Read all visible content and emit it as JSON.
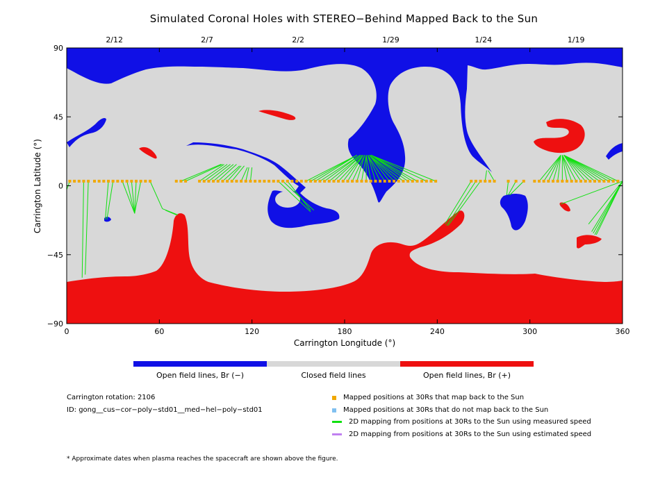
{
  "title": "Simulated Coronal Holes with STEREO−Behind Mapped Back to the Sun",
  "colors": {
    "open_negative": "#1010e6",
    "closed": "#d8d8d8",
    "open_positive": "#ee1010",
    "mapped": "#f0a800",
    "not_mapped": "#80c0f0",
    "measured": "#10e010",
    "estimated": "#c080f0"
  },
  "chart_data": {
    "type": "map",
    "xlabel": "Carrington Longitude (°)",
    "ylabel": "Carrington Latitude (°)",
    "xlim": [
      0,
      360
    ],
    "ylim": [
      -90,
      90
    ],
    "x_ticks": [
      "0",
      "60",
      "120",
      "180",
      "240",
      "300",
      "360"
    ],
    "y_ticks": [
      "90",
      "45",
      "0",
      "−45",
      "−90"
    ],
    "top_date_ticks": [
      {
        "label": "2/12",
        "lon": 30
      },
      {
        "label": "2/7",
        "lon": 90
      },
      {
        "label": "2/2",
        "lon": 149
      },
      {
        "label": "1/29",
        "lon": 209
      },
      {
        "label": "1/24",
        "lon": 269
      },
      {
        "label": "1/19",
        "lon": 329
      }
    ],
    "mapped_points": [
      [
        2,
        3
      ],
      [
        5,
        3
      ],
      [
        8,
        3
      ],
      [
        11,
        3
      ],
      [
        14,
        3
      ],
      [
        18,
        3
      ],
      [
        21,
        3
      ],
      [
        24,
        3
      ],
      [
        27,
        3
      ],
      [
        30,
        3
      ],
      [
        33,
        3
      ],
      [
        36,
        3
      ],
      [
        39,
        3
      ],
      [
        42,
        3
      ],
      [
        45,
        3
      ],
      [
        48,
        3
      ],
      [
        51,
        3
      ],
      [
        54,
        3
      ],
      [
        71,
        3
      ],
      [
        74,
        3
      ],
      [
        77,
        3
      ],
      [
        86,
        3
      ],
      [
        89,
        3
      ],
      [
        92,
        3
      ],
      [
        95,
        3
      ],
      [
        98,
        3
      ],
      [
        101,
        3
      ],
      [
        104,
        3
      ],
      [
        107,
        3
      ],
      [
        110,
        3
      ],
      [
        113,
        3
      ],
      [
        116,
        3
      ],
      [
        119,
        3
      ],
      [
        122,
        3
      ],
      [
        125,
        3
      ],
      [
        128,
        3
      ],
      [
        131,
        3
      ],
      [
        134,
        3
      ],
      [
        137,
        3
      ],
      [
        140,
        3
      ],
      [
        143,
        3
      ],
      [
        146,
        3
      ],
      [
        149,
        3
      ],
      [
        152,
        3
      ],
      [
        155,
        3
      ],
      [
        158,
        3
      ],
      [
        161,
        3
      ],
      [
        164,
        3
      ],
      [
        167,
        3
      ],
      [
        170,
        3
      ],
      [
        173,
        3
      ],
      [
        176,
        3
      ],
      [
        179,
        3
      ],
      [
        182,
        3
      ],
      [
        185,
        3
      ],
      [
        188,
        3
      ],
      [
        191,
        3
      ],
      [
        194,
        3
      ],
      [
        197,
        3
      ],
      [
        200,
        3
      ],
      [
        203,
        3
      ],
      [
        206,
        3
      ],
      [
        209,
        3
      ],
      [
        212,
        3
      ],
      [
        215,
        3
      ],
      [
        218,
        3
      ],
      [
        221,
        3
      ],
      [
        224,
        3
      ],
      [
        227,
        3
      ],
      [
        230,
        3
      ],
      [
        233,
        3
      ],
      [
        236,
        3
      ],
      [
        239,
        3
      ],
      [
        262,
        3
      ],
      [
        265,
        3
      ],
      [
        268,
        3
      ],
      [
        271,
        3
      ],
      [
        274,
        3
      ],
      [
        277,
        3
      ],
      [
        286,
        3
      ],
      [
        291,
        3
      ],
      [
        296,
        3
      ],
      [
        303,
        3
      ],
      [
        306,
        3
      ],
      [
        309,
        3
      ],
      [
        312,
        3
      ],
      [
        315,
        3
      ],
      [
        318,
        3
      ],
      [
        321,
        3
      ],
      [
        324,
        3
      ],
      [
        327,
        3
      ],
      [
        330,
        3
      ],
      [
        333,
        3
      ],
      [
        336,
        3
      ],
      [
        339,
        3
      ],
      [
        342,
        3
      ],
      [
        345,
        3
      ],
      [
        348,
        3
      ],
      [
        351,
        3
      ],
      [
        354,
        3
      ],
      [
        357,
        3
      ]
    ],
    "footpoint_links_measured": [
      [
        [
          2,
          3
        ],
        [
          -2,
          -8
        ]
      ],
      [
        [
          11,
          3
        ],
        [
          10,
          -60
        ]
      ],
      [
        [
          14,
          3
        ],
        [
          12,
          -58
        ]
      ],
      [
        [
          27,
          3
        ],
        [
          25,
          -22
        ]
      ],
      [
        [
          30,
          3
        ],
        [
          26,
          -22
        ]
      ],
      [
        [
          36,
          3
        ],
        [
          44,
          -18
        ]
      ],
      [
        [
          39,
          3
        ],
        [
          44,
          -18
        ]
      ],
      [
        [
          42,
          3
        ],
        [
          44,
          -18
        ]
      ],
      [
        [
          45,
          3
        ],
        [
          44,
          -18
        ]
      ],
      [
        [
          48,
          3
        ],
        [
          44,
          -18
        ]
      ],
      [
        [
          54,
          3
        ],
        [
          62,
          -15
        ]
      ],
      [
        [
          74,
          3
        ],
        [
          100,
          14
        ]
      ],
      [
        [
          77,
          3
        ],
        [
          101,
          14
        ]
      ],
      [
        [
          86,
          3
        ],
        [
          102,
          14
        ]
      ],
      [
        [
          89,
          3
        ],
        [
          104,
          14
        ]
      ],
      [
        [
          92,
          3
        ],
        [
          106,
          14
        ]
      ],
      [
        [
          95,
          3
        ],
        [
          108,
          14
        ]
      ],
      [
        [
          98,
          3
        ],
        [
          110,
          14
        ]
      ],
      [
        [
          101,
          3
        ],
        [
          112,
          13
        ]
      ],
      [
        [
          104,
          3
        ],
        [
          113,
          13
        ]
      ],
      [
        [
          107,
          3
        ],
        [
          115,
          13
        ]
      ],
      [
        [
          113,
          3
        ],
        [
          117,
          12
        ]
      ],
      [
        [
          116,
          3
        ],
        [
          118,
          12
        ]
      ],
      [
        [
          119,
          3
        ],
        [
          120,
          12
        ]
      ],
      [
        [
          62,
          -15
        ],
        [
          72,
          -19
        ]
      ],
      [
        [
          64,
          -16
        ],
        [
          71,
          -19
        ]
      ],
      [
        [
          137,
          3
        ],
        [
          158,
          -17
        ]
      ],
      [
        [
          140,
          3
        ],
        [
          160,
          -16
        ]
      ],
      [
        [
          143,
          3
        ],
        [
          158,
          -16
        ]
      ],
      [
        [
          155,
          3
        ],
        [
          188,
          20
        ]
      ],
      [
        [
          158,
          3
        ],
        [
          188,
          20
        ]
      ],
      [
        [
          161,
          3
        ],
        [
          188,
          20
        ]
      ],
      [
        [
          164,
          3
        ],
        [
          190,
          20
        ]
      ],
      [
        [
          167,
          3
        ],
        [
          190,
          20
        ]
      ],
      [
        [
          170,
          3
        ],
        [
          191,
          20
        ]
      ],
      [
        [
          173,
          3
        ],
        [
          191,
          20
        ]
      ],
      [
        [
          176,
          3
        ],
        [
          192,
          20
        ]
      ],
      [
        [
          179,
          3
        ],
        [
          192,
          20
        ]
      ],
      [
        [
          182,
          3
        ],
        [
          192,
          20
        ]
      ],
      [
        [
          185,
          3
        ],
        [
          193,
          20
        ]
      ],
      [
        [
          188,
          3
        ],
        [
          193,
          20
        ]
      ],
      [
        [
          191,
          3
        ],
        [
          194,
          20
        ]
      ],
      [
        [
          194,
          3
        ],
        [
          194,
          20
        ]
      ],
      [
        [
          197,
          3
        ],
        [
          194,
          20
        ]
      ],
      [
        [
          200,
          3
        ],
        [
          195,
          20
        ]
      ],
      [
        [
          203,
          3
        ],
        [
          195,
          20
        ]
      ],
      [
        [
          206,
          3
        ],
        [
          195,
          20
        ]
      ],
      [
        [
          209,
          3
        ],
        [
          196,
          20
        ]
      ],
      [
        [
          212,
          3
        ],
        [
          196,
          20
        ]
      ],
      [
        [
          215,
          3
        ],
        [
          196,
          20
        ]
      ],
      [
        [
          218,
          3
        ],
        [
          196,
          20
        ]
      ],
      [
        [
          221,
          3
        ],
        [
          197,
          20
        ]
      ],
      [
        [
          224,
          3
        ],
        [
          197,
          20
        ]
      ],
      [
        [
          227,
          3
        ],
        [
          197,
          20
        ]
      ],
      [
        [
          233,
          3
        ],
        [
          197,
          20
        ]
      ],
      [
        [
          239,
          3
        ],
        [
          197,
          20
        ]
      ],
      [
        [
          262,
          3
        ],
        [
          245,
          -25
        ]
      ],
      [
        [
          265,
          3
        ],
        [
          246,
          -26
        ]
      ],
      [
        [
          268,
          3
        ],
        [
          247,
          -26
        ]
      ],
      [
        [
          271,
          3
        ],
        [
          272,
          10
        ]
      ],
      [
        [
          277,
          3
        ],
        [
          273,
          10
        ]
      ],
      [
        [
          286,
          3
        ],
        [
          285,
          -6
        ]
      ],
      [
        [
          291,
          3
        ],
        [
          286,
          -6
        ]
      ],
      [
        [
          296,
          3
        ],
        [
          287,
          -6
        ]
      ],
      [
        [
          306,
          3
        ],
        [
          320,
          20
        ]
      ],
      [
        [
          309,
          3
        ],
        [
          320,
          20
        ]
      ],
      [
        [
          312,
          3
        ],
        [
          320,
          20
        ]
      ],
      [
        [
          315,
          3
        ],
        [
          320,
          20
        ]
      ],
      [
        [
          318,
          3
        ],
        [
          320,
          20
        ]
      ],
      [
        [
          321,
          3
        ],
        [
          321,
          20
        ]
      ],
      [
        [
          324,
          3
        ],
        [
          321,
          20
        ]
      ],
      [
        [
          327,
          3
        ],
        [
          321,
          20
        ]
      ],
      [
        [
          330,
          3
        ],
        [
          321,
          20
        ]
      ],
      [
        [
          333,
          3
        ],
        [
          322,
          20
        ]
      ],
      [
        [
          336,
          3
        ],
        [
          322,
          20
        ]
      ],
      [
        [
          339,
          3
        ],
        [
          322,
          20
        ]
      ],
      [
        [
          342,
          3
        ],
        [
          322,
          20
        ]
      ],
      [
        [
          345,
          3
        ],
        [
          322,
          20
        ]
      ],
      [
        [
          348,
          3
        ],
        [
          322,
          20
        ]
      ],
      [
        [
          351,
          3
        ],
        [
          322,
          20
        ]
      ],
      [
        [
          354,
          3
        ],
        [
          322,
          20
        ]
      ],
      [
        [
          357,
          3
        ],
        [
          322,
          20
        ]
      ],
      [
        [
          360,
          3
        ],
        [
          320,
          -12
        ]
      ],
      [
        [
          360,
          3
        ],
        [
          338,
          -25
        ]
      ],
      [
        [
          360,
          3
        ],
        [
          340,
          -30
        ]
      ],
      [
        [
          360,
          3
        ],
        [
          341,
          -31
        ]
      ],
      [
        [
          360,
          3
        ],
        [
          342,
          -32
        ]
      ],
      [
        [
          360,
          3
        ],
        [
          343,
          -32
        ]
      ]
    ]
  },
  "colorbar": {
    "labels": [
      "Open field lines, Br (−)",
      "Closed field lines",
      "Open field lines, Br (+)"
    ]
  },
  "info": {
    "rotation_label": "Carrington rotation: 2106",
    "id_label": "ID: gong__cus−cor−poly−std01__med−hel−poly−std01"
  },
  "legend": [
    {
      "kind": "square",
      "color_key": "mapped",
      "label": "Mapped positions at 30Rs that map back to the Sun"
    },
    {
      "kind": "square",
      "color_key": "not_mapped",
      "label": "Mapped positions at 30Rs that do not map back to the Sun"
    },
    {
      "kind": "line",
      "color_key": "measured",
      "label": "2D mapping from positions at 30Rs to the Sun using measured speed"
    },
    {
      "kind": "line",
      "color_key": "estimated",
      "label": "2D mapping from positions at 30Rs to the Sun using estimated speed"
    }
  ],
  "footnote": "* Approximate dates when plasma reaches the spacecraft are shown above the figure."
}
